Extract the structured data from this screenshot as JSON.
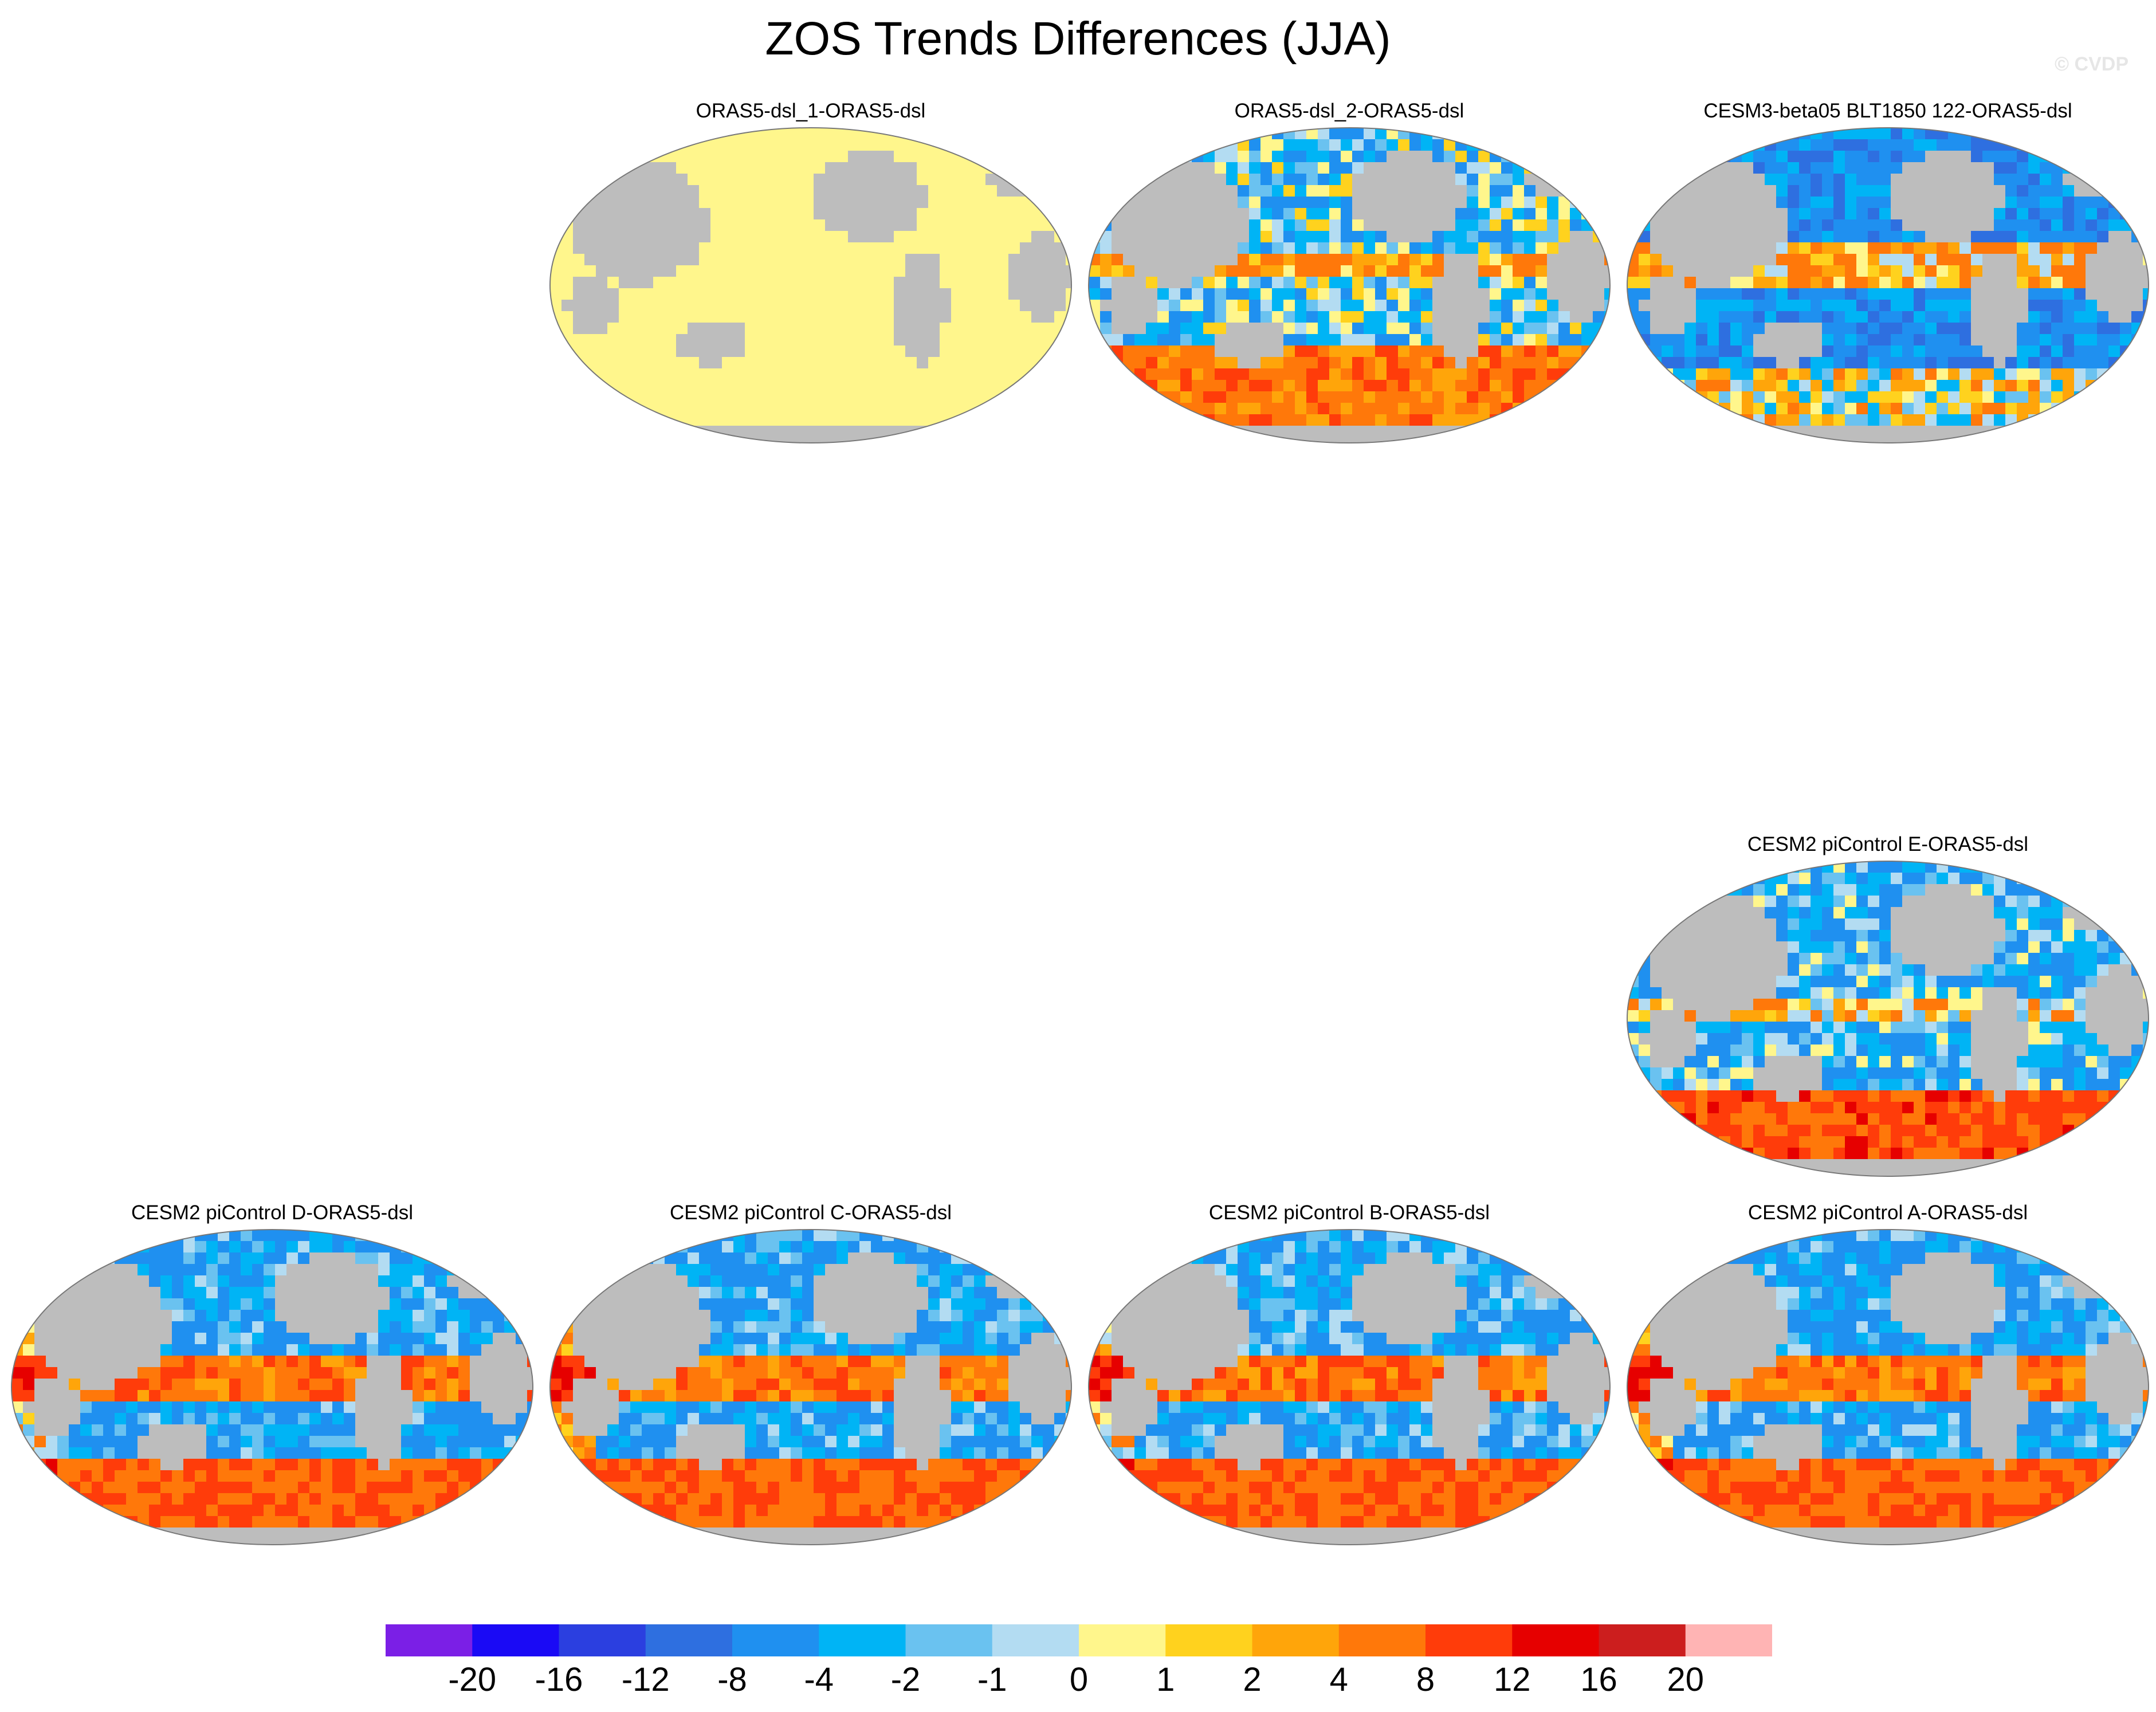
{
  "figure": {
    "title": "ZOS Trends Differences (JJA)",
    "watermark": "© CVDP"
  },
  "colors": {
    "land": "#bdbdbd",
    "missing": "#bdbdbd",
    "fill_zero_panel": "#fff68c",
    "outline": "#777777"
  },
  "panels": [
    {
      "id": "p1",
      "title": "ORAS5-dsl_1-ORAS5-dsl",
      "pattern": "uniform",
      "seed": 1
    },
    {
      "id": "p2",
      "title": "ORAS5-dsl_2-ORAS5-dsl",
      "pattern": "mixed",
      "seed": 7
    },
    {
      "id": "p3",
      "title": "CESM3-beta05 BLT1850 122-ORAS5-dsl",
      "pattern": "cool",
      "seed": 13
    },
    {
      "id": "p4",
      "title": "CESM2 piControl E-ORAS5-dsl",
      "pattern": "warm-south",
      "seed": 21
    },
    {
      "id": "p5",
      "title": "CESM2 piControl D-ORAS5-dsl",
      "pattern": "warm-eq",
      "seed": 29
    },
    {
      "id": "p6",
      "title": "CESM2 piControl C-ORAS5-dsl",
      "pattern": "warm-eq",
      "seed": 37
    },
    {
      "id": "p7",
      "title": "CESM2 piControl B-ORAS5-dsl",
      "pattern": "warm-eq",
      "seed": 43
    },
    {
      "id": "p8",
      "title": "CESM2 piControl A-ORAS5-dsl",
      "pattern": "warm-eq",
      "seed": 51
    }
  ],
  "colorbar": {
    "colors": [
      "#7b1fe6",
      "#1a0af5",
      "#2b3fe0",
      "#2e6fe0",
      "#1f90f0",
      "#00b4f5",
      "#6ac2f0",
      "#b3dcf2",
      "#fff68c",
      "#ffd21e",
      "#ffa50a",
      "#ff780a",
      "#ff3c0a",
      "#e60000",
      "#cc1e1e",
      "#ffb4b4"
    ],
    "labels": [
      "-20",
      "-16",
      "-12",
      "-8",
      "-4",
      "-2",
      "-1",
      "0",
      "1",
      "2",
      "4",
      "8",
      "12",
      "16",
      "20"
    ]
  }
}
